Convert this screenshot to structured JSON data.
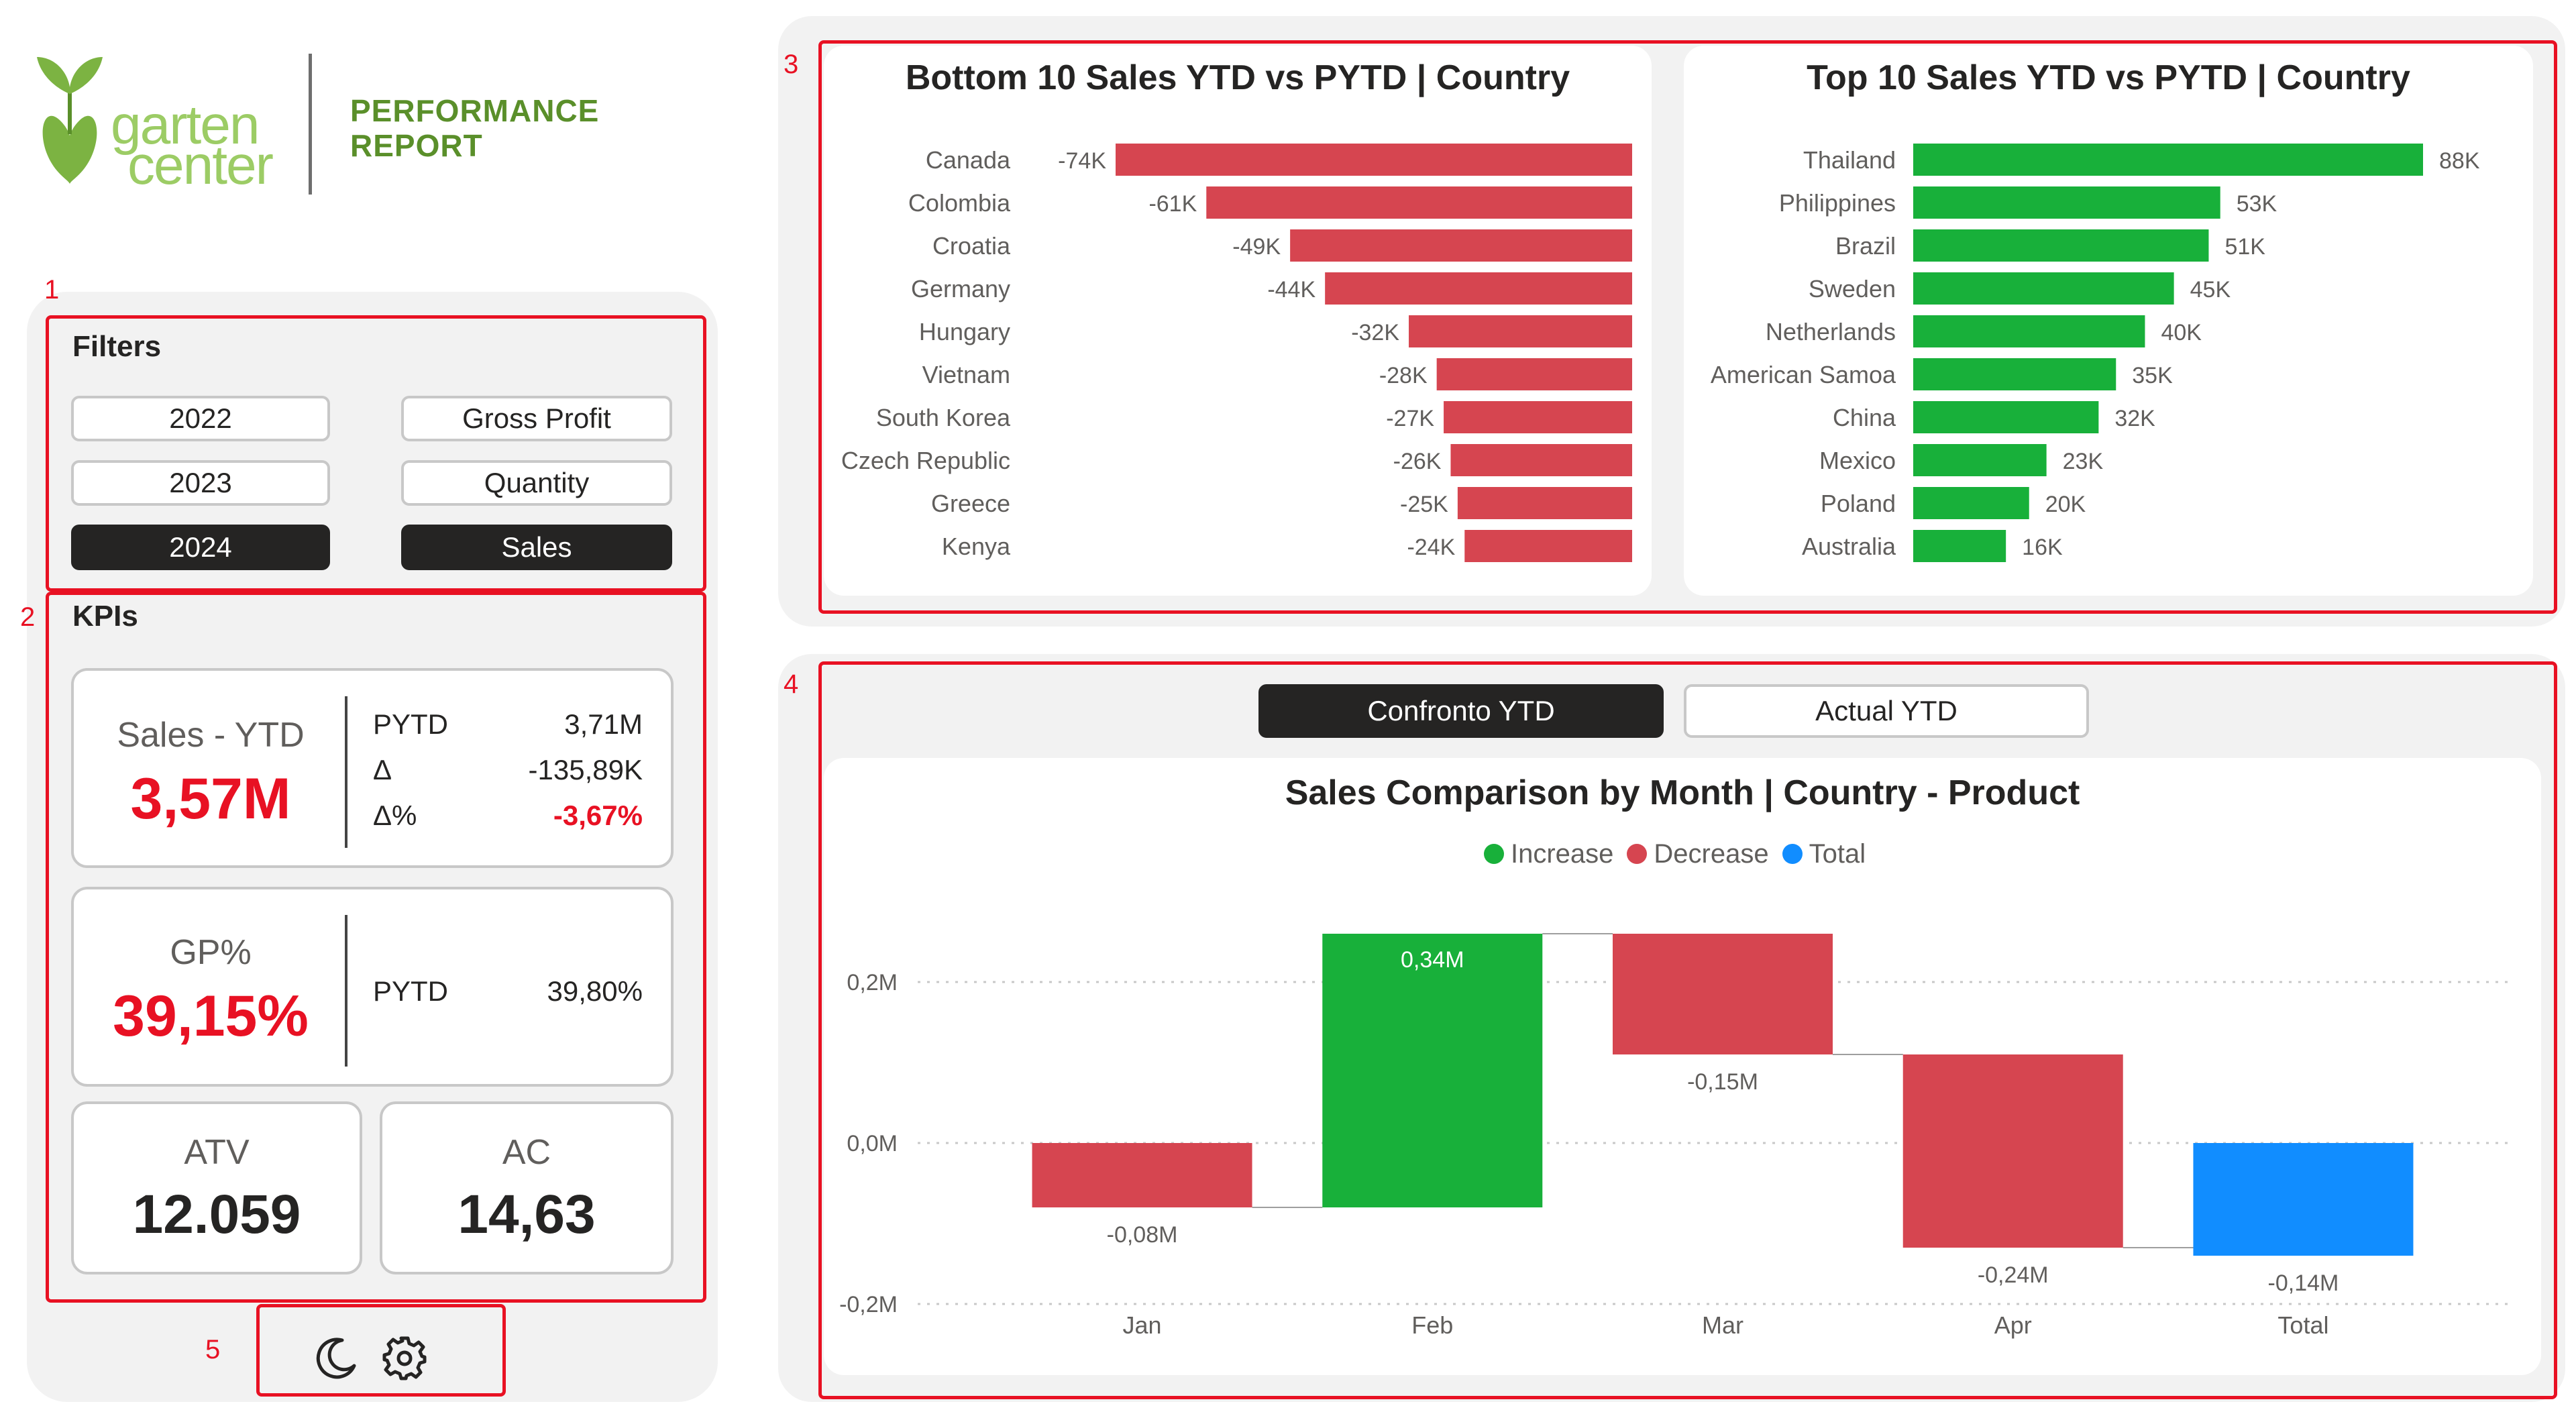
{
  "header": {
    "logo_text_1": "garten",
    "logo_text_2": "center",
    "report_title_1": "PERFORMANCE",
    "report_title_2": "REPORT"
  },
  "annotations": [
    "1",
    "2",
    "3",
    "4",
    "5"
  ],
  "filters": {
    "title": "Filters",
    "years": [
      "2022",
      "2023",
      "2024"
    ],
    "selected_year": "2024",
    "measures": [
      "Gross Profit",
      "Quantity",
      "Sales"
    ],
    "selected_measure": "Sales"
  },
  "kpis": {
    "title": "KPIs",
    "sales": {
      "label": "Sales - YTD",
      "value": "3,57M",
      "pytd_label": "PYTD",
      "pytd_value": "3,71M",
      "delta_label": "Δ",
      "delta_value": "-135,89K",
      "delta_pct_label": "Δ%",
      "delta_pct_value": "-3,67%"
    },
    "gp": {
      "label": "GP%",
      "value": "39,15%",
      "pytd_label": "PYTD",
      "pytd_value": "39,80%"
    },
    "atv": {
      "label": "ATV",
      "value": "12.059"
    },
    "ac": {
      "label": "AC",
      "value": "14,63"
    }
  },
  "footer": {
    "icons": [
      "moon-icon",
      "gear-icon"
    ]
  },
  "toggle": {
    "options": [
      "Confronto YTD",
      "Actual YTD"
    ],
    "selected": "Confronto YTD"
  },
  "colors": {
    "negative": "#d64550",
    "positive": "#18b03a",
    "total": "#118dff",
    "accent_red": "#e81123",
    "brand_green": "#7cb342"
  },
  "chart_data": [
    {
      "type": "bar",
      "orientation": "horizontal",
      "title": "Bottom 10 Sales YTD vs PYTD | Country",
      "categories": [
        "Canada",
        "Colombia",
        "Croatia",
        "Germany",
        "Hungary",
        "Vietnam",
        "South Korea",
        "Czech Republic",
        "Greece",
        "Kenya"
      ],
      "values": [
        -74,
        -61,
        -49,
        -44,
        -32,
        -28,
        -27,
        -26,
        -25,
        -24
      ],
      "labels": [
        "-74K",
        "-61K",
        "-49K",
        "-44K",
        "-32K",
        "-28K",
        "-27K",
        "-26K",
        "-25K",
        "-24K"
      ],
      "unit": "K",
      "xlim": [
        -74,
        0
      ]
    },
    {
      "type": "bar",
      "orientation": "horizontal",
      "title": "Top 10 Sales YTD vs PYTD | Country",
      "categories": [
        "Thailand",
        "Philippines",
        "Brazil",
        "Sweden",
        "Netherlands",
        "American Samoa",
        "China",
        "Mexico",
        "Poland",
        "Australia"
      ],
      "values": [
        88,
        53,
        51,
        45,
        40,
        35,
        32,
        23,
        20,
        16
      ],
      "labels": [
        "88K",
        "53K",
        "51K",
        "45K",
        "40K",
        "35K",
        "32K",
        "23K",
        "20K",
        "16K"
      ],
      "unit": "K",
      "xlim": [
        0,
        88
      ]
    },
    {
      "type": "bar",
      "subtype": "waterfall",
      "title": "Sales Comparison by Month | Country - Product",
      "legend": [
        "Increase",
        "Decrease",
        "Total"
      ],
      "categories": [
        "Jan",
        "Feb",
        "Mar",
        "Apr",
        "Total"
      ],
      "values": [
        -0.08,
        0.34,
        -0.15,
        -0.24,
        -0.14
      ],
      "kinds": [
        "decrease",
        "increase",
        "decrease",
        "decrease",
        "total"
      ],
      "labels": [
        "-0,08M",
        "0,34M",
        "-0,15M",
        "-0,24M",
        "-0,14M"
      ],
      "ylim": [
        -0.2,
        0.26
      ],
      "yticks": [
        0.2,
        0.0,
        -0.2
      ],
      "ytick_labels": [
        "0,2M",
        "0,0M",
        "-0,2M"
      ]
    }
  ]
}
